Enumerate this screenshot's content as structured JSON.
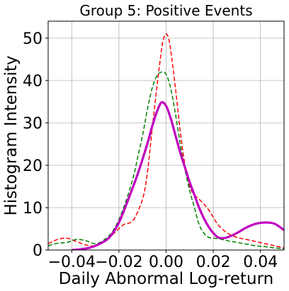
{
  "chart_data": {
    "type": "line",
    "title": "Group 5: Positive Events",
    "xlabel": "Daily Abnormal Log-return",
    "ylabel": "Histogram Intensity",
    "xlim": [
      -0.05,
      0.05
    ],
    "ylim": [
      0,
      54
    ],
    "grid": true,
    "x_ticks": [
      -0.04,
      -0.02,
      0.0,
      0.02,
      0.04
    ],
    "x_tick_labels": [
      "−0.04",
      "−0.02",
      "0.00",
      "0.02",
      "0.04"
    ],
    "y_ticks": [
      0,
      10,
      20,
      30,
      40,
      50
    ],
    "y_tick_labels": [
      "0",
      "10",
      "20",
      "30",
      "40",
      "50"
    ],
    "series": [
      {
        "color": "#ff0000",
        "style": "dashed",
        "x": [
          -0.05,
          -0.046,
          -0.042,
          -0.038,
          -0.034,
          -0.03,
          -0.026,
          -0.022,
          -0.018,
          -0.014,
          -0.01,
          -0.008,
          -0.006,
          -0.004,
          -0.002,
          -0.001,
          0.0,
          0.001,
          0.002,
          0.004,
          0.006,
          0.008,
          0.01,
          0.012,
          0.014,
          0.018,
          0.022,
          0.026,
          0.03,
          0.034,
          0.038,
          0.042,
          0.046,
          0.05
        ],
        "y": [
          1.5,
          2.5,
          2.8,
          2.0,
          1.2,
          1.0,
          2.0,
          4.0,
          6.0,
          7.0,
          12.0,
          18.0,
          28.0,
          38.0,
          47.0,
          50.0,
          51.0,
          50.0,
          47.0,
          38.0,
          28.0,
          20.0,
          15.0,
          13.0,
          12.0,
          9.5,
          6.0,
          4.0,
          3.0,
          2.5,
          2.0,
          1.5,
          1.0,
          0.5
        ]
      },
      {
        "color": "#008000",
        "style": "dashed",
        "x": [
          -0.05,
          -0.046,
          -0.042,
          -0.038,
          -0.034,
          -0.03,
          -0.026,
          -0.022,
          -0.018,
          -0.014,
          -0.012,
          -0.01,
          -0.008,
          -0.006,
          -0.004,
          -0.002,
          0.0,
          0.002,
          0.004,
          0.006,
          0.008,
          0.01,
          0.012,
          0.014,
          0.016,
          0.018,
          0.022,
          0.026,
          0.03,
          0.034,
          0.038,
          0.042,
          0.046,
          0.05
        ],
        "y": [
          1.0,
          1.6,
          1.8,
          2.5,
          2.2,
          1.5,
          2.5,
          5.0,
          10.0,
          17.0,
          22.0,
          27.0,
          33.0,
          38.0,
          41.0,
          42.0,
          41.5,
          38.0,
          32.0,
          25.0,
          19.0,
          14.0,
          10.0,
          6.0,
          4.0,
          3.0,
          2.7,
          2.2,
          1.8,
          1.4,
          1.0,
          0.8,
          0.5,
          0.3
        ]
      },
      {
        "color": "#bf00bf",
        "style": "solid",
        "x": [
          -0.04,
          -0.036,
          -0.032,
          -0.028,
          -0.024,
          -0.02,
          -0.016,
          -0.012,
          -0.008,
          -0.006,
          -0.004,
          -0.002,
          0.0,
          0.002,
          0.004,
          0.006,
          0.008,
          0.01,
          0.012,
          0.014,
          0.016,
          0.018,
          0.02,
          0.022,
          0.024,
          0.026,
          0.03,
          0.034,
          0.038,
          0.042,
          0.046,
          0.05
        ],
        "y": [
          0.0,
          0.2,
          0.6,
          1.5,
          3.0,
          6.5,
          12.0,
          18.0,
          25.0,
          29.0,
          32.5,
          34.8,
          34.0,
          31.0,
          27.0,
          23.0,
          19.5,
          16.0,
          13.0,
          10.0,
          7.5,
          5.5,
          4.0,
          3.0,
          2.8,
          3.0,
          4.0,
          5.3,
          6.2,
          6.5,
          6.2,
          4.7
        ]
      }
    ]
  }
}
